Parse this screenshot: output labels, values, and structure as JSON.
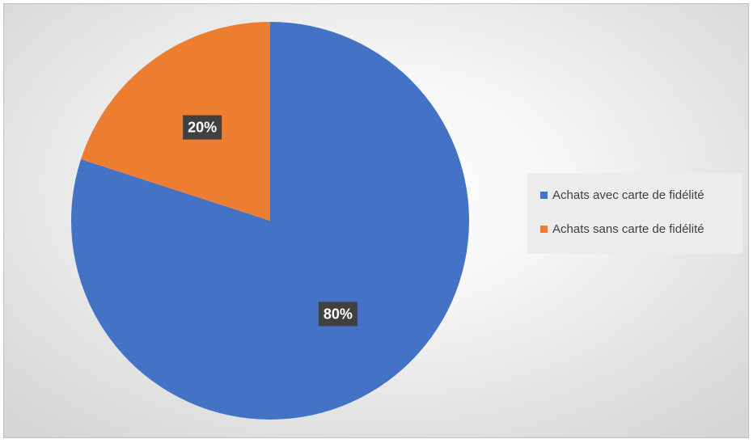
{
  "chart_data": {
    "type": "pie",
    "categories": [
      "Achats avec carte de fidélité",
      "Achats sans carte de fidélité"
    ],
    "values": [
      80,
      20
    ],
    "data_labels": [
      "80%",
      "20%"
    ],
    "colors": [
      "#4472C4",
      "#ED7D31"
    ],
    "title": "",
    "legend_position": "right"
  }
}
